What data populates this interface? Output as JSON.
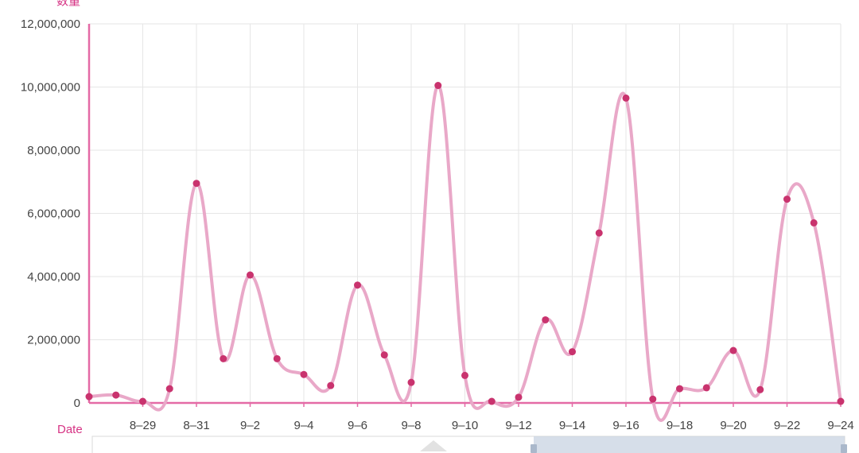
{
  "chart_data": {
    "type": "line",
    "xlabel": "Date",
    "ylabel": "数量",
    "ylim": [
      0,
      12000000
    ],
    "y_ticks": [
      0,
      2000000,
      4000000,
      6000000,
      8000000,
      10000000,
      12000000
    ],
    "y_tick_labels": [
      "0",
      "2,000,000",
      "4,000,000",
      "6,000,000",
      "8,000,000",
      "10,000,000",
      "12,000,000"
    ],
    "x_tick_labels": [
      "8-29",
      "8-31",
      "9-2",
      "9-4",
      "9-6",
      "9-8",
      "9-10",
      "9-12",
      "9-14",
      "9-16",
      "9-18",
      "9-20",
      "9-22",
      "9-24"
    ],
    "x": [
      "8-27",
      "8-28",
      "8-29",
      "8-30",
      "8-31",
      "9-1",
      "9-2",
      "9-3",
      "9-4",
      "9-5",
      "9-6",
      "9-7",
      "9-8",
      "9-9",
      "9-10",
      "9-11",
      "9-12",
      "9-13",
      "9-14",
      "9-15",
      "9-16",
      "9-17",
      "9-18",
      "9-19",
      "9-20",
      "9-21",
      "9-22",
      "9-23",
      "9-24"
    ],
    "series": [
      {
        "values": [
          200000,
          250000,
          50000,
          450000,
          6950000,
          1400000,
          4050000,
          1400000,
          900000,
          550000,
          3730000,
          1520000,
          650000,
          10050000,
          870000,
          50000,
          180000,
          2630000,
          1620000,
          5380000,
          9650000,
          120000,
          450000,
          480000,
          1660000,
          420000,
          6450000,
          5700000,
          50000
        ],
        "line_color": "#e9a8c8",
        "point_color": "#c9336e"
      }
    ],
    "axis_color": "#e46aa6",
    "grid": true,
    "smooth": true,
    "legend": "none"
  }
}
